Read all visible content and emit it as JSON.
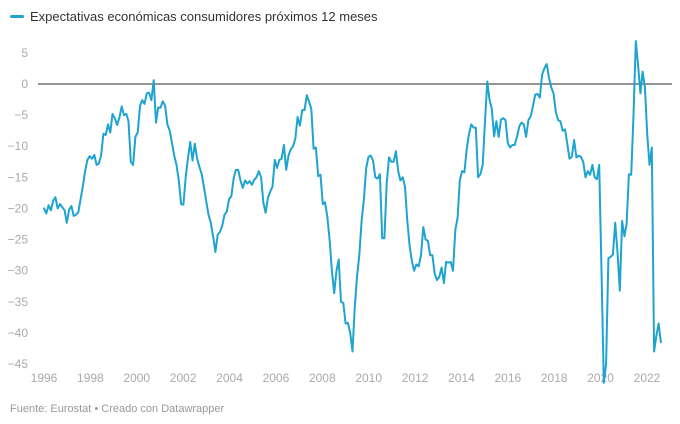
{
  "chart_data": {
    "type": "line",
    "title": "",
    "legend": [
      "Expectativas económicas consumidores próximos 12 meses"
    ],
    "legend_position": "top-left",
    "xlabel": "",
    "ylabel": "",
    "ylim": [
      -45,
      7
    ],
    "xlim": [
      1996,
      2022.6
    ],
    "y_ticks": [
      5,
      0,
      -5,
      -10,
      -15,
      -20,
      -25,
      -30,
      -35,
      -40,
      -45
    ],
    "y_tick_labels": [
      "5",
      "0",
      "−5",
      "−10",
      "−15",
      "−20",
      "−25",
      "−30",
      "−35",
      "−40",
      "−45"
    ],
    "x_ticks": [
      1996,
      1998,
      2000,
      2002,
      2004,
      2006,
      2008,
      2010,
      2012,
      2014,
      2016,
      2018,
      2020,
      2022
    ],
    "x_tick_labels": [
      "1996",
      "1998",
      "2000",
      "2002",
      "2004",
      "2006",
      "2008",
      "2010",
      "2012",
      "2014",
      "2016",
      "2018",
      "2020",
      "2022"
    ],
    "grid": false,
    "zero_line": true,
    "series": [
      {
        "name": "Expectativas económicas consumidores próximos 12 meses",
        "color": "#1fa3cf",
        "points": [
          [
            1996.0,
            -20
          ],
          [
            1996.1,
            -20.8
          ],
          [
            1996.2,
            -19.5
          ],
          [
            1996.3,
            -20.3
          ],
          [
            1996.4,
            -18.8
          ],
          [
            1996.5,
            -18.2
          ],
          [
            1996.6,
            -20
          ],
          [
            1996.7,
            -19.3
          ],
          [
            1996.8,
            -19.8
          ],
          [
            1996.9,
            -20.3
          ],
          [
            1997.0,
            -22.3
          ],
          [
            1997.1,
            -20.2
          ],
          [
            1997.2,
            -19.6
          ],
          [
            1997.3,
            -21.2
          ],
          [
            1997.4,
            -21
          ],
          [
            1997.5,
            -20.6
          ],
          [
            1997.6,
            -18.5
          ],
          [
            1997.7,
            -16.5
          ],
          [
            1997.8,
            -14
          ],
          [
            1997.9,
            -12.2
          ],
          [
            1998.0,
            -11.6
          ],
          [
            1998.1,
            -12
          ],
          [
            1998.2,
            -11.4
          ],
          [
            1998.3,
            -13
          ],
          [
            1998.4,
            -12.8
          ],
          [
            1998.5,
            -11.5
          ],
          [
            1998.6,
            -8
          ],
          [
            1998.7,
            -8.2
          ],
          [
            1998.8,
            -6.5
          ],
          [
            1998.9,
            -7.8
          ],
          [
            1999.0,
            -4.8
          ],
          [
            1999.1,
            -5.5
          ],
          [
            1999.2,
            -6.6
          ],
          [
            1999.3,
            -5.4
          ],
          [
            1999.4,
            -3.6
          ],
          [
            1999.5,
            -5
          ],
          [
            1999.6,
            -4.8
          ],
          [
            1999.7,
            -6
          ],
          [
            1999.8,
            -12.5
          ],
          [
            1999.9,
            -13
          ],
          [
            2000.0,
            -8.5
          ],
          [
            2000.1,
            -7.8
          ],
          [
            2000.2,
            -3.5
          ],
          [
            2000.3,
            -2.6
          ],
          [
            2000.4,
            -3.2
          ],
          [
            2000.5,
            -1.5
          ],
          [
            2000.6,
            -1.4
          ],
          [
            2000.7,
            -2.6
          ],
          [
            2000.8,
            0.6
          ],
          [
            2000.9,
            -6.2
          ],
          [
            2001.0,
            -3.8
          ],
          [
            2001.1,
            -3.8
          ],
          [
            2001.2,
            -2.8
          ],
          [
            2001.3,
            -3.5
          ],
          [
            2001.4,
            -6.5
          ],
          [
            2001.5,
            -7.5
          ],
          [
            2001.6,
            -9.5
          ],
          [
            2001.7,
            -11.5
          ],
          [
            2001.8,
            -13
          ],
          [
            2001.9,
            -15.5
          ],
          [
            2002.0,
            -19.3
          ],
          [
            2002.1,
            -19.4
          ],
          [
            2002.2,
            -15
          ],
          [
            2002.3,
            -12
          ],
          [
            2002.4,
            -9.3
          ],
          [
            2002.5,
            -12.3
          ],
          [
            2002.6,
            -9.6
          ],
          [
            2002.7,
            -12
          ],
          [
            2002.8,
            -13.3
          ],
          [
            2002.9,
            -14.5
          ],
          [
            2003.0,
            -16.5
          ],
          [
            2003.1,
            -18.8
          ],
          [
            2003.2,
            -21
          ],
          [
            2003.3,
            -22.3
          ],
          [
            2003.4,
            -24.5
          ],
          [
            2003.5,
            -27
          ],
          [
            2003.6,
            -24.2
          ],
          [
            2003.7,
            -23.8
          ],
          [
            2003.8,
            -22.8
          ],
          [
            2003.9,
            -21
          ],
          [
            2004.0,
            -20.5
          ],
          [
            2004.1,
            -18.5
          ],
          [
            2004.2,
            -18
          ],
          [
            2004.3,
            -15.2
          ],
          [
            2004.4,
            -13.8
          ],
          [
            2004.5,
            -13.8
          ],
          [
            2004.6,
            -15.5
          ],
          [
            2004.7,
            -16.7
          ],
          [
            2004.8,
            -15.5
          ],
          [
            2004.9,
            -16
          ],
          [
            2005.0,
            -15.6
          ],
          [
            2005.1,
            -16.2
          ],
          [
            2005.2,
            -15.4
          ],
          [
            2005.3,
            -15
          ],
          [
            2005.4,
            -14
          ],
          [
            2005.5,
            -15
          ],
          [
            2005.6,
            -19
          ],
          [
            2005.7,
            -20.7
          ],
          [
            2005.8,
            -18.3
          ],
          [
            2005.9,
            -17.3
          ],
          [
            2006.0,
            -16.5
          ],
          [
            2006.1,
            -12.2
          ],
          [
            2006.2,
            -13.5
          ],
          [
            2006.3,
            -12.2
          ],
          [
            2006.4,
            -12
          ],
          [
            2006.5,
            -9.8
          ],
          [
            2006.6,
            -13.8
          ],
          [
            2006.7,
            -11.5
          ],
          [
            2006.8,
            -10.5
          ],
          [
            2006.9,
            -10
          ],
          [
            2007.0,
            -8.8
          ],
          [
            2007.1,
            -5.3
          ],
          [
            2007.2,
            -6.7
          ],
          [
            2007.3,
            -4.2
          ],
          [
            2007.4,
            -4.2
          ],
          [
            2007.5,
            -1.8
          ],
          [
            2007.6,
            -2.8
          ],
          [
            2007.7,
            -4
          ],
          [
            2007.8,
            -10.4
          ],
          [
            2007.9,
            -10.2
          ],
          [
            2008.0,
            -14.8
          ],
          [
            2008.1,
            -14.6
          ],
          [
            2008.2,
            -19.3
          ],
          [
            2008.3,
            -19
          ],
          [
            2008.4,
            -21.3
          ],
          [
            2008.5,
            -25
          ],
          [
            2008.6,
            -30
          ],
          [
            2008.7,
            -33.6
          ],
          [
            2008.8,
            -30
          ],
          [
            2008.9,
            -28.2
          ],
          [
            2009.0,
            -35
          ],
          [
            2009.1,
            -35.2
          ],
          [
            2009.2,
            -38.5
          ],
          [
            2009.3,
            -38.4
          ],
          [
            2009.4,
            -40
          ],
          [
            2009.5,
            -43
          ],
          [
            2009.6,
            -36
          ],
          [
            2009.7,
            -31
          ],
          [
            2009.8,
            -27.5
          ],
          [
            2009.9,
            -22
          ],
          [
            2010.0,
            -18.5
          ],
          [
            2010.1,
            -13.5
          ],
          [
            2010.2,
            -11.7
          ],
          [
            2010.3,
            -11.5
          ],
          [
            2010.4,
            -12.3
          ],
          [
            2010.5,
            -15
          ],
          [
            2010.6,
            -15.2
          ],
          [
            2010.7,
            -14.5
          ],
          [
            2010.8,
            -24.8
          ],
          [
            2010.9,
            -24.8
          ],
          [
            2011.0,
            -16
          ],
          [
            2011.1,
            -11.8
          ],
          [
            2011.2,
            -12.5
          ],
          [
            2011.3,
            -12.5
          ],
          [
            2011.4,
            -10.8
          ],
          [
            2011.5,
            -14
          ],
          [
            2011.6,
            -15.5
          ],
          [
            2011.7,
            -15
          ],
          [
            2011.8,
            -16.5
          ],
          [
            2011.9,
            -22
          ],
          [
            2012.0,
            -26
          ],
          [
            2012.1,
            -28.5
          ],
          [
            2012.2,
            -30
          ],
          [
            2012.3,
            -29
          ],
          [
            2012.4,
            -29.3
          ],
          [
            2012.5,
            -27.5
          ],
          [
            2012.6,
            -23
          ],
          [
            2012.7,
            -25
          ],
          [
            2012.8,
            -25.2
          ],
          [
            2012.9,
            -27.5
          ],
          [
            2013.0,
            -27.5
          ],
          [
            2013.1,
            -30.5
          ],
          [
            2013.2,
            -31.5
          ],
          [
            2013.3,
            -31
          ],
          [
            2013.4,
            -29.5
          ],
          [
            2013.5,
            -32
          ],
          [
            2013.6,
            -28.6
          ],
          [
            2013.7,
            -28.7
          ],
          [
            2013.8,
            -28.6
          ],
          [
            2013.9,
            -30
          ],
          [
            2014.0,
            -23.5
          ],
          [
            2014.1,
            -21.5
          ],
          [
            2014.2,
            -15.5
          ],
          [
            2014.3,
            -14
          ],
          [
            2014.4,
            -14.2
          ],
          [
            2014.5,
            -10.5
          ],
          [
            2014.6,
            -8
          ],
          [
            2014.7,
            -6.5
          ],
          [
            2014.8,
            -7
          ],
          [
            2014.9,
            -7
          ],
          [
            2015.0,
            -15
          ],
          [
            2015.1,
            -14.5
          ],
          [
            2015.2,
            -13
          ],
          [
            2015.3,
            -6
          ],
          [
            2015.4,
            0.4
          ],
          [
            2015.5,
            -2.5
          ],
          [
            2015.6,
            -4
          ],
          [
            2015.7,
            -8.4
          ],
          [
            2015.8,
            -6
          ],
          [
            2015.9,
            -8.5
          ],
          [
            2016.0,
            -5.7
          ],
          [
            2016.1,
            -5.5
          ],
          [
            2016.2,
            -5.8
          ],
          [
            2016.3,
            -9.5
          ],
          [
            2016.4,
            -10.2
          ],
          [
            2016.5,
            -9.8
          ],
          [
            2016.6,
            -9.8
          ],
          [
            2016.7,
            -8.5
          ],
          [
            2016.8,
            -6.8
          ],
          [
            2016.9,
            -6.2
          ],
          [
            2017.0,
            -6.5
          ],
          [
            2017.1,
            -8.5
          ],
          [
            2017.2,
            -5.8
          ],
          [
            2017.3,
            -5.2
          ],
          [
            2017.4,
            -3.5
          ],
          [
            2017.5,
            -1.7
          ],
          [
            2017.6,
            -1.6
          ],
          [
            2017.7,
            -2.2
          ],
          [
            2017.8,
            1.5
          ],
          [
            2017.9,
            2.5
          ],
          [
            2018.0,
            3.2
          ],
          [
            2018.1,
            1
          ],
          [
            2018.2,
            -0.5
          ],
          [
            2018.3,
            -1.5
          ],
          [
            2018.4,
            -4.5
          ],
          [
            2018.5,
            -5.8
          ],
          [
            2018.6,
            -6
          ],
          [
            2018.7,
            -7.5
          ],
          [
            2018.8,
            -7.3
          ],
          [
            2018.9,
            -9.5
          ],
          [
            2019.0,
            -12
          ],
          [
            2019.1,
            -11.7
          ],
          [
            2019.2,
            -9
          ],
          [
            2019.3,
            -11.8
          ],
          [
            2019.4,
            -11.5
          ],
          [
            2019.5,
            -11.7
          ],
          [
            2019.6,
            -12.5
          ],
          [
            2019.7,
            -15
          ],
          [
            2019.8,
            -14
          ],
          [
            2019.9,
            -14.6
          ],
          [
            2020.0,
            -13
          ],
          [
            2020.1,
            -15
          ],
          [
            2020.2,
            -15.3
          ],
          [
            2020.3,
            -13
          ],
          [
            2020.4,
            -30
          ],
          [
            2020.5,
            -48
          ],
          [
            2020.6,
            -45
          ],
          [
            2020.7,
            -28
          ],
          [
            2020.8,
            -27.8
          ],
          [
            2020.9,
            -27.4
          ],
          [
            2021.0,
            -22.3
          ],
          [
            2021.1,
            -27
          ],
          [
            2021.2,
            -33.2
          ],
          [
            2021.3,
            -22
          ],
          [
            2021.4,
            -24.5
          ],
          [
            2021.5,
            -22.5
          ],
          [
            2021.6,
            -14.5
          ],
          [
            2021.7,
            -14.6
          ],
          [
            2021.8,
            -5
          ],
          [
            2021.9,
            6.9
          ],
          [
            2022.0,
            3
          ],
          [
            2022.1,
            -1.5
          ],
          [
            2022.2,
            2
          ],
          [
            2022.3,
            -0.5
          ],
          [
            2022.4,
            -8
          ],
          [
            2022.5,
            -13
          ],
          [
            2022.6,
            -10.2
          ],
          [
            2022.7,
            -43
          ],
          [
            2022.8,
            -40.5
          ],
          [
            2022.9,
            -38.5
          ],
          [
            2023.0,
            -41.5
          ]
        ]
      }
    ]
  },
  "legend": {
    "label": "Expectativas económicas consumidores próximos 12 meses",
    "color": "#1fa3cf"
  },
  "footer": {
    "source": "Fuente: Eurostat • Creado con Datawrapper"
  }
}
